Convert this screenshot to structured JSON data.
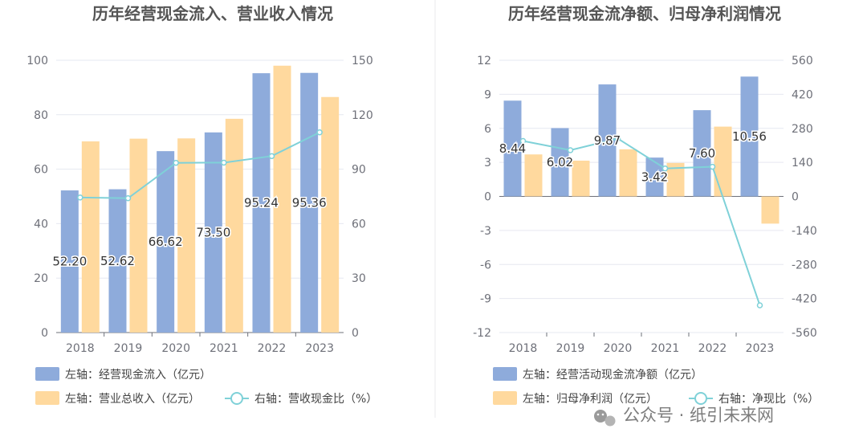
{
  "colors": {
    "bar_primary": "#8eabdb",
    "bar_secondary": "#ffd99e",
    "line": "#7fd1d8",
    "grid": "#e6e8f0",
    "axis_text": "#6e7079"
  },
  "watermark": "公众号 · 纸引未来网",
  "chart_data": [
    {
      "type": "bar",
      "title": "历年经营现金流入、营业收入情况",
      "categories": [
        "2018",
        "2019",
        "2020",
        "2021",
        "2022",
        "2023"
      ],
      "left_axis": {
        "ticks": [
          "0",
          "20",
          "40",
          "60",
          "80",
          "100"
        ],
        "ylim": [
          0,
          100
        ]
      },
      "right_axis": {
        "ticks": [
          "0",
          "30",
          "60",
          "90",
          "120",
          "150"
        ],
        "ylim": [
          0,
          150
        ]
      },
      "grid": true,
      "legend_position": "bottom",
      "series": [
        {
          "name": "左轴：经营现金流入（亿元）",
          "kind": "bar",
          "axis": "left",
          "color": "#8eabdb",
          "values": [
            52.2,
            52.62,
            66.62,
            73.5,
            95.24,
            95.36
          ],
          "labels": [
            "52.20",
            "52.62",
            "66.62",
            "73.50",
            "95.24",
            "95.36"
          ]
        },
        {
          "name": "左轴：营业总收入（亿元）",
          "kind": "bar",
          "axis": "left",
          "color": "#ffd99e",
          "values": [
            70.2,
            71.2,
            71.3,
            78.5,
            98.0,
            86.5
          ]
        },
        {
          "name": "右轴：营收现金比（%）",
          "kind": "line",
          "axis": "right",
          "color": "#7fd1d8",
          "values": [
            74.4,
            74.0,
            93.5,
            93.6,
            97.2,
            110.3
          ]
        }
      ]
    },
    {
      "type": "bar",
      "title": "历年经营现金流净额、归母净利润情况",
      "categories": [
        "2018",
        "2019",
        "2020",
        "2021",
        "2022",
        "2023"
      ],
      "left_axis": {
        "ticks": [
          "-12",
          "-9",
          "-6",
          "-3",
          "0",
          "3",
          "6",
          "9",
          "12"
        ],
        "ylim": [
          -12,
          12
        ]
      },
      "right_axis": {
        "ticks": [
          "-560",
          "-420",
          "-280",
          "-140",
          "0",
          "140",
          "280",
          "420",
          "560"
        ],
        "ylim": [
          -560,
          560
        ]
      },
      "grid": true,
      "legend_position": "bottom",
      "series": [
        {
          "name": "左轴：经营活动现金流净额（亿元）",
          "kind": "bar",
          "axis": "left",
          "color": "#8eabdb",
          "values": [
            8.44,
            6.02,
            9.87,
            3.42,
            7.6,
            10.56
          ],
          "labels": [
            "8.44",
            "6.02",
            "9.87",
            "3.42",
            "7.60",
            "10.56"
          ]
        },
        {
          "name": "左轴：归母净利润（亿元）",
          "kind": "bar",
          "axis": "left",
          "color": "#ffd99e",
          "values": [
            3.7,
            3.15,
            4.15,
            2.95,
            6.15,
            -2.4
          ]
        },
        {
          "name": "右轴：净现比（%）",
          "kind": "line",
          "axis": "right",
          "color": "#7fd1d8",
          "values": [
            228,
            190,
            238,
            115,
            122,
            -448
          ]
        }
      ]
    }
  ]
}
